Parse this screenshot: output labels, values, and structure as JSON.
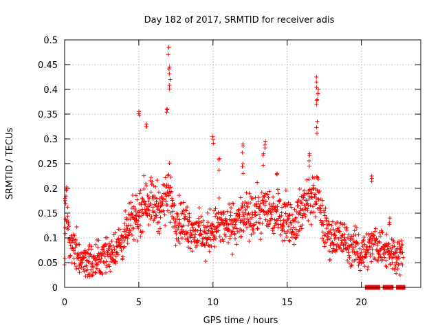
{
  "chart_data": {
    "type": "scatter",
    "title": "Day 182 of 2017, SRMTID for receiver adis",
    "xlabel": "GPS time / hours",
    "ylabel": "SRMTID / TECUs",
    "xlim": [
      0,
      24
    ],
    "ylim": [
      0,
      0.5
    ],
    "x_ticks": [
      0,
      5,
      10,
      15,
      20
    ],
    "x_tick_labels": [
      "0",
      "5",
      "10",
      "15",
      "20"
    ],
    "y_ticks": [
      0,
      0.05,
      0.1,
      0.15,
      0.2,
      0.25,
      0.3,
      0.35,
      0.4,
      0.45,
      0.5
    ],
    "y_tick_labels": [
      "0",
      "0.05",
      "0.1",
      "0.15",
      "0.2",
      "0.25",
      "0.3",
      "0.35",
      "0.4",
      "0.45",
      "0.5"
    ],
    "grid": true,
    "marker": "plus",
    "color": "#ff0000",
    "series": [
      {
        "name": "SRMTID",
        "profile_x": [
          0,
          0.1,
          0.3,
          0.6,
          1.0,
          1.5,
          2.0,
          2.5,
          3.0,
          3.5,
          4.0,
          4.5,
          5.0,
          5.5,
          6.0,
          6.5,
          7.0,
          7.5,
          8.0,
          8.5,
          9.0,
          9.5,
          10.0,
          10.5,
          11.0,
          11.5,
          12.0,
          12.5,
          13.0,
          13.5,
          14.0,
          14.5,
          15.0,
          15.5,
          16.0,
          16.5,
          17.0,
          17.5,
          18.0,
          18.5,
          19.0,
          19.5,
          20.0,
          20.5,
          21.0,
          21.5,
          22.0,
          22.5,
          22.8
        ],
        "profile_y": [
          0.07,
          0.17,
          0.09,
          0.08,
          0.06,
          0.055,
          0.05,
          0.06,
          0.07,
          0.08,
          0.1,
          0.13,
          0.15,
          0.18,
          0.17,
          0.16,
          0.2,
          0.14,
          0.13,
          0.12,
          0.11,
          0.1,
          0.12,
          0.13,
          0.12,
          0.13,
          0.14,
          0.14,
          0.15,
          0.16,
          0.15,
          0.15,
          0.14,
          0.13,
          0.16,
          0.18,
          0.19,
          0.12,
          0.1,
          0.1,
          0.09,
          0.08,
          0.07,
          0.08,
          0.09,
          0.08,
          0.07,
          0.07,
          0.06
        ],
        "spread_y": 0.035,
        "peaks": [
          {
            "x": 0.05,
            "y": 0.18
          },
          {
            "x": 5.0,
            "y": 0.355
          },
          {
            "x": 5.5,
            "y": 0.33
          },
          {
            "x": 6.9,
            "y": 0.36
          },
          {
            "x": 7.0,
            "y": 0.485
          },
          {
            "x": 7.05,
            "y": 0.445
          },
          {
            "x": 7.1,
            "y": 0.42
          },
          {
            "x": 10.0,
            "y": 0.305
          },
          {
            "x": 10.4,
            "y": 0.26
          },
          {
            "x": 12.0,
            "y": 0.29
          },
          {
            "x": 12.0,
            "y": 0.25
          },
          {
            "x": 13.5,
            "y": 0.295
          },
          {
            "x": 13.4,
            "y": 0.27
          },
          {
            "x": 14.3,
            "y": 0.23
          },
          {
            "x": 16.5,
            "y": 0.27
          },
          {
            "x": 17.0,
            "y": 0.425
          },
          {
            "x": 17.0,
            "y": 0.38
          },
          {
            "x": 17.1,
            "y": 0.4
          },
          {
            "x": 17.0,
            "y": 0.335
          },
          {
            "x": 20.7,
            "y": 0.225
          },
          {
            "x": 21.9,
            "y": 0.14
          }
        ],
        "zero_points_x": [
          20.4,
          20.7,
          20.9,
          21.0,
          21.1,
          21.6,
          21.8,
          21.9,
          22.0,
          22.5,
          22.6,
          22.8
        ]
      }
    ]
  }
}
